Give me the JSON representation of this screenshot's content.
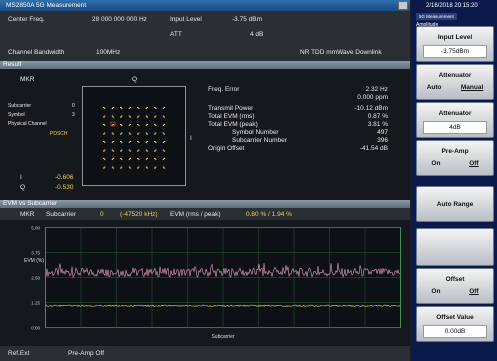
{
  "header": {
    "app_title": "MS2850A 5G Measurement"
  },
  "settings": {
    "center_freq_label": "Center Freq.",
    "center_freq_value": "28 000 000 000 Hz",
    "input_level_label": "Input Level",
    "input_level_value": "-3.75 dBm",
    "att_label": "ATT",
    "att_value": "4 dB",
    "channel_bw_label": "Channel Bandwidth",
    "channel_bw_value": "100MHz",
    "standard": "NR TDD mmWave Downlink"
  },
  "result": {
    "title": "Result",
    "mkr": "MKR",
    "q_axis": "Q",
    "subcarrier_label": "Subcarrier",
    "subcarrier_value": "0",
    "symbol_label": "Symbol",
    "symbol_value": "3",
    "channel_label": "Physical Channel",
    "channel_value": "PDSCH",
    "i_label": "I",
    "i_value": "-0.606",
    "q_label": "Q",
    "q_value": "-0.530",
    "metrics": [
      {
        "label": "Freq. Error",
        "values": [
          "2.32 Hz",
          "0.000 ppm"
        ]
      },
      {
        "label": "Transmit Power",
        "values": [
          "-10.12 dBm"
        ]
      },
      {
        "label": "Total EVM (rms)",
        "values": [
          "0.87 %"
        ]
      },
      {
        "label": "Total EVM (peak)",
        "values": [
          "3.81 %"
        ]
      },
      {
        "label": "Symbol Number",
        "values": [
          "497"
        ]
      },
      {
        "label": "Subcarrier Number",
        "values": [
          "396"
        ]
      },
      {
        "label": "Origin Offset",
        "values": [
          "-41.54 dB"
        ]
      }
    ]
  },
  "evm": {
    "title": "EVM vs Subcarrier",
    "mkr": "MKR",
    "subcarrier_label": "Subcarrier",
    "subcarrier_value": "0",
    "freq": "(-47520 kHz)",
    "evm_label": "EVM (rms / peak)",
    "evm_value": "0.80 % /   1.94 %",
    "y_label": "EVM (%)",
    "yticks": [
      "5.00",
      "3.75",
      "2.50",
      "1.25",
      "0.00"
    ],
    "x_label": "Subcarrier"
  },
  "status": {
    "ref": "Ref.Ext",
    "preamp": "Pre-Amp Off"
  },
  "side": {
    "date": "2/16/2018 20:15:20",
    "menu": "5G Measurement",
    "title": "Amplitude",
    "buttons": [
      {
        "label": "Input Level",
        "value": "-3.75dBm"
      },
      {
        "label": "Attenuator",
        "options": [
          "Auto",
          "Manual"
        ]
      },
      {
        "label": "Attenuator",
        "value": "4dB"
      },
      {
        "label": "Pre-Amp",
        "options": [
          "On",
          "Off"
        ]
      },
      {
        "label": "Auto Range"
      },
      {
        "label": "Offset",
        "options": [
          "On",
          "Off"
        ]
      },
      {
        "label": "Offset Value",
        "value": "0.00dB"
      }
    ]
  }
}
